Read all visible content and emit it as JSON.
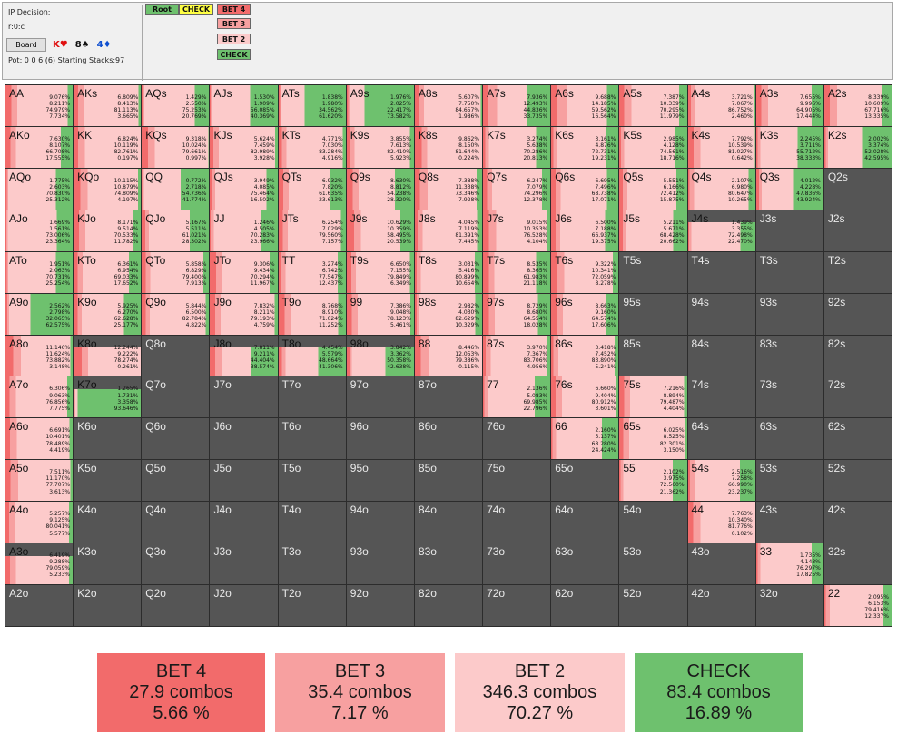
{
  "header": {
    "decision_label": "IP Decision:",
    "node_label": "r:0:c",
    "board_button": "Board",
    "board_cards": [
      {
        "text": "K♥",
        "color": "#e01010"
      },
      {
        "text": "8♠",
        "color": "#111111"
      },
      {
        "text": "4♦",
        "color": "#1050d0"
      }
    ],
    "pot_text": "Pot: 0 0 6 (6) Starting Stacks:97"
  },
  "tree": {
    "root": "Root",
    "check_top": "CHECK",
    "actions": [
      "BET 4",
      "BET 3",
      "BET 2",
      "CHECK"
    ]
  },
  "colors": {
    "bet4": "#f26b6b",
    "bet3": "#f7a0a0",
    "bet2": "#fccaca",
    "check": "#6ec16e",
    "empty": "#555555",
    "root": "#6ec16e",
    "check_top": "#ffff44"
  },
  "grid": [
    [
      {
        "h": "AA",
        "p": [
          "9.076%",
          "8.211%",
          "74.979%",
          "7.734%"
        ]
      },
      {
        "h": "AKs",
        "p": [
          "6.809%",
          "8.413%",
          "81.113%",
          "3.665%"
        ]
      },
      {
        "h": "AQs",
        "p": [
          "1.429%",
          "2.550%",
          "75.253%",
          "20.769%"
        ]
      },
      {
        "h": "AJs",
        "p": [
          "1.530%",
          "1.909%",
          "56.085%",
          "40.369%"
        ]
      },
      {
        "h": "ATs",
        "p": [
          "1.838%",
          "1.980%",
          "34.562%",
          "61.620%"
        ]
      },
      {
        "h": "A9s",
        "p": [
          "1.976%",
          "2.025%",
          "22.417%",
          "73.582%"
        ]
      },
      {
        "h": "A8s",
        "p": [
          "5.607%",
          "7.750%",
          "84.657%",
          "1.986%"
        ]
      },
      {
        "h": "A7s",
        "p": [
          "7.936%",
          "12.493%",
          "44.836%",
          "33.735%"
        ]
      },
      {
        "h": "A6s",
        "p": [
          "9.688%",
          "14.185%",
          "59.562%",
          "16.564%"
        ]
      },
      {
        "h": "A5s",
        "p": [
          "7.387%",
          "10.339%",
          "70.295%",
          "11.979%"
        ]
      },
      {
        "h": "A4s",
        "p": [
          "3.721%",
          "7.067%",
          "86.752%",
          "2.460%"
        ]
      },
      {
        "h": "A3s",
        "p": [
          "7.655%",
          "9.996%",
          "64.905%",
          "17.444%"
        ]
      },
      {
        "h": "A2s",
        "p": [
          "8.339%",
          "10.609%",
          "67.716%",
          "13.335%"
        ]
      }
    ],
    [
      {
        "h": "AKo",
        "p": [
          "7.630%",
          "8.107%",
          "66.708%",
          "17.555%"
        ]
      },
      {
        "h": "KK",
        "p": [
          "6.824%",
          "10.119%",
          "82.761%",
          "0.197%"
        ]
      },
      {
        "h": "KQs",
        "p": [
          "9.318%",
          "10.024%",
          "79.661%",
          "0.997%"
        ]
      },
      {
        "h": "KJs",
        "p": [
          "5.624%",
          "7.459%",
          "82.989%",
          "3.928%"
        ]
      },
      {
        "h": "KTs",
        "p": [
          "4.771%",
          "7.030%",
          "83.284%",
          "4.916%"
        ]
      },
      {
        "h": "K9s",
        "p": [
          "3.855%",
          "7.613%",
          "82.410%",
          "5.923%"
        ]
      },
      {
        "h": "K8s",
        "p": [
          "9.862%",
          "8.150%",
          "81.644%",
          "0.224%"
        ]
      },
      {
        "h": "K7s",
        "p": [
          "3.274%",
          "5.638%",
          "70.286%",
          "20.813%"
        ]
      },
      {
        "h": "K6s",
        "p": [
          "3.161%",
          "4.876%",
          "72.731%",
          "19.231%"
        ]
      },
      {
        "h": "K5s",
        "p": [
          "2.985%",
          "4.128%",
          "74.561%",
          "18.716%"
        ]
      },
      {
        "h": "K4s",
        "p": [
          "7.792%",
          "10.539%",
          "81.027%",
          "0.642%"
        ]
      },
      {
        "h": "K3s",
        "p": [
          "2.245%",
          "3.711%",
          "55.712%",
          "38.333%"
        ]
      },
      {
        "h": "K2s",
        "p": [
          "2.002%",
          "3.374%",
          "52.028%",
          "42.595%"
        ]
      }
    ],
    [
      {
        "h": "AQo",
        "p": [
          "1.775%",
          "2.603%",
          "70.830%",
          "25.312%"
        ]
      },
      {
        "h": "KQo",
        "p": [
          "10.115%",
          "10.879%",
          "74.809%",
          "4.197%"
        ]
      },
      {
        "h": "QQ",
        "p": [
          "0.772%",
          "2.718%",
          "54.736%",
          "41.774%"
        ]
      },
      {
        "h": "QJs",
        "p": [
          "3.949%",
          "4.085%",
          "75.464%",
          "16.502%"
        ]
      },
      {
        "h": "QTs",
        "p": [
          "6.932%",
          "7.820%",
          "61.635%",
          "23.613%"
        ]
      },
      {
        "h": "Q9s",
        "p": [
          "8.630%",
          "8.812%",
          "54.238%",
          "28.320%"
        ]
      },
      {
        "h": "Q8s",
        "p": [
          "7.388%",
          "11.338%",
          "73.346%",
          "7.928%"
        ]
      },
      {
        "h": "Q7s",
        "p": [
          "6.247%",
          "7.079%",
          "74.296%",
          "12.378%"
        ]
      },
      {
        "h": "Q6s",
        "p": [
          "6.695%",
          "7.496%",
          "68.738%",
          "17.071%"
        ]
      },
      {
        "h": "Q5s",
        "p": [
          "5.551%",
          "6.166%",
          "72.412%",
          "15.875%"
        ]
      },
      {
        "h": "Q4s",
        "p": [
          "2.107%",
          "6.980%",
          "80.647%",
          "10.265%"
        ]
      },
      {
        "h": "Q3s",
        "p": [
          "4.012%",
          "4.228%",
          "47.836%",
          "43.924%"
        ]
      },
      {
        "h": "Q2s",
        "p": null
      }
    ],
    [
      {
        "h": "AJo",
        "p": [
          "1.669%",
          "1.561%",
          "73.006%",
          "23.364%"
        ]
      },
      {
        "h": "KJo",
        "p": [
          "8.171%",
          "9.514%",
          "70.533%",
          "11.782%"
        ]
      },
      {
        "h": "QJo",
        "p": [
          "5.167%",
          "5.511%",
          "61.021%",
          "28.302%"
        ]
      },
      {
        "h": "JJ",
        "p": [
          "1.246%",
          "4.505%",
          "70.283%",
          "23.966%"
        ]
      },
      {
        "h": "JTs",
        "p": [
          "6.254%",
          "7.029%",
          "79.560%",
          "7.157%"
        ]
      },
      {
        "h": "J9s",
        "p": [
          "10.629%",
          "10.359%",
          "58.495%",
          "20.539%"
        ]
      },
      {
        "h": "J8s",
        "p": [
          "4.045%",
          "7.119%",
          "81.391%",
          "7.445%"
        ]
      },
      {
        "h": "J7s",
        "p": [
          "9.015%",
          "10.353%",
          "76.528%",
          "4.104%"
        ]
      },
      {
        "h": "J6s",
        "p": [
          "6.500%",
          "7.188%",
          "66.937%",
          "19.375%"
        ]
      },
      {
        "h": "J5s",
        "p": [
          "5.211%",
          "5.671%",
          "68.428%",
          "20.662%"
        ]
      },
      {
        "h": "J4s",
        "p": [
          "1.439%",
          "3.355%",
          "72.498%",
          "22.470%"
        ],
        "partial": true
      },
      {
        "h": "J3s",
        "p": null
      },
      {
        "h": "J2s",
        "p": null
      }
    ],
    [
      {
        "h": "ATo",
        "p": [
          "1.951%",
          "2.063%",
          "70.731%",
          "25.254%"
        ]
      },
      {
        "h": "KTo",
        "p": [
          "6.361%",
          "6.954%",
          "69.033%",
          "17.652%"
        ]
      },
      {
        "h": "QTo",
        "p": [
          "5.858%",
          "6.829%",
          "79.400%",
          "7.913%"
        ]
      },
      {
        "h": "JTo",
        "p": [
          "9.306%",
          "9.434%",
          "70.294%",
          "11.967%"
        ]
      },
      {
        "h": "TT",
        "p": [
          "3.274%",
          "6.742%",
          "77.547%",
          "12.437%"
        ]
      },
      {
        "h": "T9s",
        "p": [
          "6.650%",
          "7.155%",
          "79.849%",
          "6.349%"
        ]
      },
      {
        "h": "T8s",
        "p": [
          "3.031%",
          "5.416%",
          "80.899%",
          "10.654%"
        ]
      },
      {
        "h": "T7s",
        "p": [
          "8.535%",
          "8.365%",
          "61.983%",
          "21.118%"
        ]
      },
      {
        "h": "T6s",
        "p": [
          "9.322%",
          "10.341%",
          "72.059%",
          "8.278%"
        ]
      },
      {
        "h": "T5s",
        "p": null
      },
      {
        "h": "T4s",
        "p": null
      },
      {
        "h": "T3s",
        "p": null
      },
      {
        "h": "T2s",
        "p": null
      }
    ],
    [
      {
        "h": "A9o",
        "p": [
          "2.562%",
          "2.798%",
          "32.065%",
          "62.575%"
        ]
      },
      {
        "h": "K9o",
        "p": [
          "5.925%",
          "6.270%",
          "62.628%",
          "25.177%"
        ]
      },
      {
        "h": "Q9o",
        "p": [
          "5.844%",
          "6.500%",
          "82.784%",
          "4.822%"
        ]
      },
      {
        "h": "J9o",
        "p": [
          "7.832%",
          "8.211%",
          "79.193%",
          "4.759%"
        ]
      },
      {
        "h": "T9o",
        "p": [
          "8.768%",
          "8.910%",
          "71.024%",
          "11.252%"
        ]
      },
      {
        "h": "99",
        "p": [
          "7.386%",
          "9.048%",
          "78.123%",
          "5.461%"
        ]
      },
      {
        "h": "98s",
        "p": [
          "2.982%",
          "4.030%",
          "82.629%",
          "10.329%"
        ]
      },
      {
        "h": "97s",
        "p": [
          "8.729%",
          "8.680%",
          "64.554%",
          "18.028%"
        ]
      },
      {
        "h": "96s",
        "p": [
          "8.663%",
          "9.160%",
          "64.574%",
          "17.606%"
        ]
      },
      {
        "h": "95s",
        "p": null
      },
      {
        "h": "94s",
        "p": null
      },
      {
        "h": "93s",
        "p": null
      },
      {
        "h": "92s",
        "p": null
      }
    ],
    [
      {
        "h": "A8o",
        "p": [
          "11.146%",
          "11.624%",
          "73.882%",
          "3.148%"
        ]
      },
      {
        "h": "K8o",
        "p": [
          "12.244%",
          "9.222%",
          "78.274%",
          "0.261%"
        ],
        "partial": true
      },
      {
        "h": "Q8o",
        "p": null
      },
      {
        "h": "J8o",
        "p": [
          "7.811%",
          "9.211%",
          "44.404%",
          "38.574%"
        ],
        "partial": true
      },
      {
        "h": "T8o",
        "p": [
          "4.454%",
          "5.579%",
          "48.664%",
          "41.306%"
        ],
        "partial": true
      },
      {
        "h": "98o",
        "p": [
          "3.842%",
          "3.362%",
          "50.358%",
          "42.638%"
        ],
        "partial": true
      },
      {
        "h": "88",
        "p": [
          "8.446%",
          "12.053%",
          "79.386%",
          "0.115%"
        ]
      },
      {
        "h": "87s",
        "p": [
          "3.970%",
          "7.367%",
          "83.706%",
          "4.956%"
        ]
      },
      {
        "h": "86s",
        "p": [
          "3.418%",
          "7.452%",
          "83.890%",
          "5.241%"
        ]
      },
      {
        "h": "85s",
        "p": null
      },
      {
        "h": "84s",
        "p": null
      },
      {
        "h": "83s",
        "p": null
      },
      {
        "h": "82s",
        "p": null
      }
    ],
    [
      {
        "h": "A7o",
        "p": [
          "6.306%",
          "9.063%",
          "76.856%",
          "7.775%"
        ]
      },
      {
        "h": "K7o",
        "p": [
          "1.265%",
          "1.731%",
          "3.358%",
          "93.646%"
        ],
        "partial": true
      },
      {
        "h": "Q7o",
        "p": null
      },
      {
        "h": "J7o",
        "p": null
      },
      {
        "h": "T7o",
        "p": null
      },
      {
        "h": "97o",
        "p": null
      },
      {
        "h": "87o",
        "p": null
      },
      {
        "h": "77",
        "p": [
          "2.136%",
          "5.083%",
          "69.985%",
          "22.796%"
        ]
      },
      {
        "h": "76s",
        "p": [
          "6.660%",
          "9.404%",
          "80.912%",
          "3.601%"
        ]
      },
      {
        "h": "75s",
        "p": [
          "7.216%",
          "8.894%",
          "79.487%",
          "4.404%"
        ]
      },
      {
        "h": "74s",
        "p": null
      },
      {
        "h": "73s",
        "p": null
      },
      {
        "h": "72s",
        "p": null
      }
    ],
    [
      {
        "h": "A6o",
        "p": [
          "6.691%",
          "10.401%",
          "78.489%",
          "4.419%"
        ]
      },
      {
        "h": "K6o",
        "p": null
      },
      {
        "h": "Q6o",
        "p": null
      },
      {
        "h": "J6o",
        "p": null
      },
      {
        "h": "T6o",
        "p": null
      },
      {
        "h": "96o",
        "p": null
      },
      {
        "h": "86o",
        "p": null
      },
      {
        "h": "76o",
        "p": null
      },
      {
        "h": "66",
        "p": [
          "2.160%",
          "5.137%",
          "68.280%",
          "24.424%"
        ]
      },
      {
        "h": "65s",
        "p": [
          "6.025%",
          "8.525%",
          "82.301%",
          "3.150%"
        ]
      },
      {
        "h": "64s",
        "p": null
      },
      {
        "h": "63s",
        "p": null
      },
      {
        "h": "62s",
        "p": null
      }
    ],
    [
      {
        "h": "A5o",
        "p": [
          "7.511%",
          "11.170%",
          "77.707%",
          "3.613%"
        ]
      },
      {
        "h": "K5o",
        "p": null
      },
      {
        "h": "Q5o",
        "p": null
      },
      {
        "h": "J5o",
        "p": null
      },
      {
        "h": "T5o",
        "p": null
      },
      {
        "h": "95o",
        "p": null
      },
      {
        "h": "85o",
        "p": null
      },
      {
        "h": "75o",
        "p": null
      },
      {
        "h": "65o",
        "p": null
      },
      {
        "h": "55",
        "p": [
          "2.102%",
          "3.975%",
          "72.560%",
          "21.362%"
        ]
      },
      {
        "h": "54s",
        "p": [
          "2.516%",
          "7.258%",
          "66.990%",
          "23.237%"
        ]
      },
      {
        "h": "53s",
        "p": null
      },
      {
        "h": "52s",
        "p": null
      }
    ],
    [
      {
        "h": "A4o",
        "p": [
          "5.257%",
          "9.125%",
          "80.041%",
          "5.577%"
        ]
      },
      {
        "h": "K4o",
        "p": null
      },
      {
        "h": "Q4o",
        "p": null
      },
      {
        "h": "J4o",
        "p": null
      },
      {
        "h": "T4o",
        "p": null
      },
      {
        "h": "94o",
        "p": null
      },
      {
        "h": "84o",
        "p": null
      },
      {
        "h": "74o",
        "p": null
      },
      {
        "h": "64o",
        "p": null
      },
      {
        "h": "54o",
        "p": null
      },
      {
        "h": "44",
        "p": [
          "7.763%",
          "10.340%",
          "81.776%",
          "0.102%"
        ]
      },
      {
        "h": "43s",
        "p": null
      },
      {
        "h": "42s",
        "p": null
      }
    ],
    [
      {
        "h": "A3o",
        "p": [
          "6.419%",
          "9.288%",
          "79.059%",
          "5.233%"
        ],
        "partial": true
      },
      {
        "h": "K3o",
        "p": null
      },
      {
        "h": "Q3o",
        "p": null
      },
      {
        "h": "J3o",
        "p": null
      },
      {
        "h": "T3o",
        "p": null
      },
      {
        "h": "93o",
        "p": null
      },
      {
        "h": "83o",
        "p": null
      },
      {
        "h": "73o",
        "p": null
      },
      {
        "h": "63o",
        "p": null
      },
      {
        "h": "53o",
        "p": null
      },
      {
        "h": "43o",
        "p": null
      },
      {
        "h": "33",
        "p": [
          "1.735%",
          "4.143%",
          "76.297%",
          "17.825%"
        ]
      },
      {
        "h": "32s",
        "p": null
      }
    ],
    [
      {
        "h": "A2o",
        "p": null
      },
      {
        "h": "K2o",
        "p": null
      },
      {
        "h": "Q2o",
        "p": null
      },
      {
        "h": "J2o",
        "p": null
      },
      {
        "h": "T2o",
        "p": null
      },
      {
        "h": "92o",
        "p": null
      },
      {
        "h": "82o",
        "p": null
      },
      {
        "h": "72o",
        "p": null
      },
      {
        "h": "62o",
        "p": null
      },
      {
        "h": "52o",
        "p": null
      },
      {
        "h": "42o",
        "p": null
      },
      {
        "h": "32o",
        "p": null
      },
      {
        "h": "22",
        "p": [
          "2.095%",
          "6.153%",
          "79.416%",
          "12.337%"
        ]
      }
    ]
  ],
  "summary": [
    {
      "action": "BET 4",
      "combos": "27.9 combos",
      "pct": "5.66 %",
      "color": "#f26b6b"
    },
    {
      "action": "BET 3",
      "combos": "35.4 combos",
      "pct": "7.17 %",
      "color": "#f7a0a0"
    },
    {
      "action": "BET 2",
      "combos": "346.3 combos",
      "pct": "70.27 %",
      "color": "#fccaca"
    },
    {
      "action": "CHECK",
      "combos": "83.4 combos",
      "pct": "16.89 %",
      "color": "#6ec16e"
    }
  ]
}
